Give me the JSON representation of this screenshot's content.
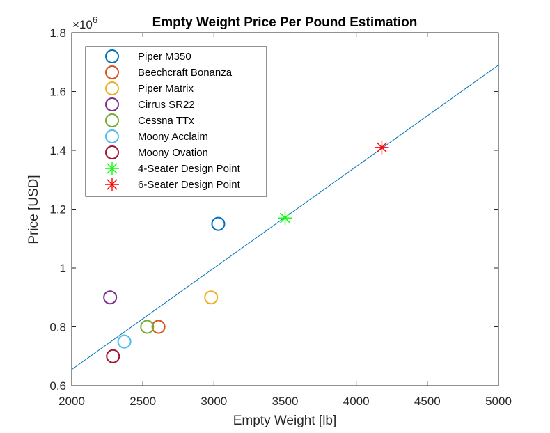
{
  "chart_data": {
    "type": "scatter",
    "title": "Empty Weight Price Per Pound Estimation",
    "xlabel": "Empty Weight [lb]",
    "ylabel": "Price [USD]",
    "y_exponent_base": "×10",
    "y_exponent_power": "6",
    "xlim": [
      2000,
      5000
    ],
    "ylim": [
      0.6,
      1.8
    ],
    "y_scale_factor": 1000000,
    "xticks": [
      2000,
      2500,
      3000,
      3500,
      4000,
      4500,
      5000
    ],
    "xtick_labels": [
      "2000",
      "2500",
      "3000",
      "3500",
      "4000",
      "4500",
      "5000"
    ],
    "yticks": [
      0.6,
      0.8,
      1.0,
      1.2,
      1.4,
      1.6,
      1.8
    ],
    "ytick_labels": [
      "0.6",
      "0.8",
      "1",
      "1.2",
      "1.4",
      "1.6",
      "1.8"
    ],
    "grid": false,
    "legend_position": "top-left",
    "series": [
      {
        "name": "Piper M350",
        "marker": "circle",
        "color": "#0072BD",
        "points": [
          [
            3030,
            1.15
          ]
        ]
      },
      {
        "name": "Beechcraft Bonanza",
        "marker": "circle",
        "color": "#D95319",
        "points": [
          [
            2610,
            0.8
          ]
        ]
      },
      {
        "name": "Piper Matrix",
        "marker": "circle",
        "color": "#EDB120",
        "points": [
          [
            2980,
            0.9
          ]
        ]
      },
      {
        "name": "Cirrus SR22",
        "marker": "circle",
        "color": "#7E2F8E",
        "points": [
          [
            2270,
            0.9
          ]
        ]
      },
      {
        "name": "Cessna TTx",
        "marker": "circle",
        "color": "#77AC30",
        "points": [
          [
            2530,
            0.8
          ]
        ]
      },
      {
        "name": "Moony Acclaim",
        "marker": "circle",
        "color": "#4DBEEE",
        "points": [
          [
            2370,
            0.75
          ]
        ]
      },
      {
        "name": "Moony Ovation",
        "marker": "circle",
        "color": "#A2142F",
        "points": [
          [
            2290,
            0.7
          ]
        ]
      },
      {
        "name": "4-Seater Design Point",
        "marker": "asterisk",
        "color": "#00FF00",
        "points": [
          [
            3500,
            1.17
          ]
        ]
      },
      {
        "name": "6-Seater Design Point",
        "marker": "asterisk",
        "color": "#FF0000",
        "points": [
          [
            4180,
            1.41
          ]
        ]
      }
    ],
    "trend_line": {
      "color": "#0072BD",
      "points": [
        [
          2000,
          0.655
        ],
        [
          5000,
          1.69
        ]
      ]
    }
  }
}
